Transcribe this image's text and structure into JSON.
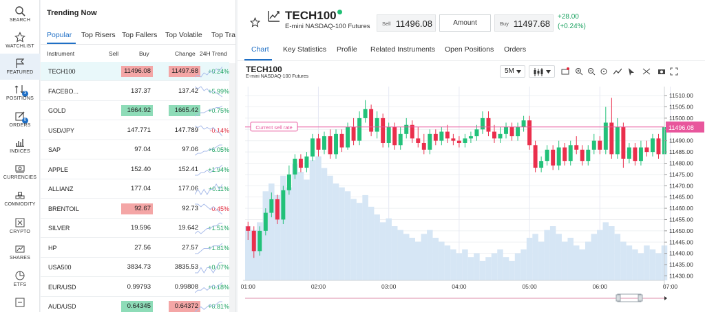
{
  "nav": [
    {
      "key": "search",
      "label": "SEARCH",
      "icon": "search-icon"
    },
    {
      "key": "watchlist",
      "label": "WATCHLIST",
      "icon": "star-icon"
    },
    {
      "key": "featured",
      "label": "FEATURED",
      "icon": "flag-icon",
      "active": true
    },
    {
      "key": "positions",
      "label": "POSITIONS",
      "icon": "positions-icon",
      "badge": "3"
    },
    {
      "key": "orders",
      "label": "ORDERS",
      "icon": "orders-icon",
      "badge": "0"
    },
    {
      "key": "indices",
      "label": "INDICES",
      "icon": "indices-icon"
    },
    {
      "key": "currencies",
      "label": "CURRENCIES",
      "icon": "currencies-icon"
    },
    {
      "key": "commodity",
      "label": "COMMODITY",
      "icon": "commodity-icon"
    },
    {
      "key": "crypto",
      "label": "CRYPTO",
      "icon": "crypto-icon"
    },
    {
      "key": "shares",
      "label": "SHARES",
      "icon": "shares-icon"
    },
    {
      "key": "etfs",
      "label": "ETFS",
      "icon": "etfs-icon"
    },
    {
      "key": "more",
      "label": "",
      "icon": "more-icon"
    }
  ],
  "trending": {
    "title": "Trending Now",
    "tabs": [
      "Popular",
      "Top Risers",
      "Top Fallers",
      "Top Volatile",
      "Top Trad"
    ],
    "headers": {
      "instrument": "Instrument",
      "sell": "Sell",
      "buy": "Buy",
      "change": "Change",
      "trend": "24H Trend"
    },
    "rows": [
      {
        "name": "TECH100",
        "sell": "11496.08",
        "buy": "11497.68",
        "change": "+0.24%",
        "sell_hl": "red",
        "buy_hl": "red",
        "dir": "pos",
        "active": true,
        "spark": [
          3,
          4,
          3,
          5,
          4,
          6,
          5,
          7,
          6,
          8
        ]
      },
      {
        "name": "FACEBO...",
        "sell": "137.37",
        "buy": "137.42",
        "change": "+5.99%",
        "sell_hl": "",
        "buy_hl": "",
        "dir": "pos",
        "spark": [
          6,
          5,
          6,
          4,
          5,
          3,
          4,
          3,
          2,
          1
        ]
      },
      {
        "name": "GOLD",
        "sell": "1664.92",
        "buy": "1665.42",
        "change": "+0.75%",
        "sell_hl": "green",
        "buy_hl": "green",
        "dir": "pos",
        "spark": [
          2,
          3,
          4,
          4,
          5,
          6,
          6,
          7,
          7,
          8
        ]
      },
      {
        "name": "USD/JPY",
        "sell": "147.771",
        "buy": "147.789",
        "change": "-0.14%",
        "sell_hl": "",
        "buy_hl": "",
        "dir": "neg",
        "spark": [
          7,
          6,
          7,
          5,
          6,
          5,
          6,
          4,
          3,
          1
        ]
      },
      {
        "name": "SAP",
        "sell": "97.04",
        "buy": "97.06",
        "change": "+6.05%",
        "sell_hl": "",
        "buy_hl": "",
        "dir": "pos",
        "spark": [
          2,
          3,
          3,
          4,
          4,
          5,
          5,
          6,
          7,
          7
        ]
      },
      {
        "name": "APPLE",
        "sell": "152.40",
        "buy": "152.41",
        "change": "+1.94%",
        "sell_hl": "",
        "buy_hl": "",
        "dir": "pos",
        "spark": [
          3,
          3,
          4,
          4,
          5,
          4,
          5,
          6,
          6,
          7
        ]
      },
      {
        "name": "ALLIANZ",
        "sell": "177.04",
        "buy": "177.06",
        "change": "+0.11%",
        "sell_hl": "",
        "buy_hl": "",
        "dir": "pos",
        "spark": [
          4,
          5,
          4,
          5,
          4,
          5,
          5,
          6,
          5,
          6
        ]
      },
      {
        "name": "BRENTOIL",
        "sell": "92.67",
        "buy": "92.73",
        "change": "-0.45%",
        "sell_hl": "red",
        "buy_hl": "",
        "dir": "neg",
        "spark": [
          6,
          6,
          5,
          6,
          5,
          4,
          5,
          4,
          3,
          2
        ]
      },
      {
        "name": "SILVER",
        "sell": "19.596",
        "buy": "19.642",
        "change": "+1.51%",
        "sell_hl": "",
        "buy_hl": "",
        "dir": "pos",
        "spark": [
          3,
          4,
          3,
          4,
          5,
          5,
          6,
          6,
          7,
          7
        ]
      },
      {
        "name": "HP",
        "sell": "27.56",
        "buy": "27.57",
        "change": "+1.81%",
        "sell_hl": "",
        "buy_hl": "",
        "dir": "pos",
        "spark": [
          3,
          3,
          4,
          5,
          5,
          5,
          6,
          6,
          6,
          7
        ]
      },
      {
        "name": "USA500",
        "sell": "3834.73",
        "buy": "3835.53",
        "change": "+0.07%",
        "sell_hl": "",
        "buy_hl": "",
        "dir": "pos",
        "spark": [
          4,
          4,
          5,
          4,
          5,
          5,
          4,
          5,
          6,
          6
        ]
      },
      {
        "name": "EUR/USD",
        "sell": "0.99793",
        "buy": "0.99808",
        "change": "+0.18%",
        "sell_hl": "",
        "buy_hl": "",
        "dir": "pos",
        "spark": [
          3,
          4,
          4,
          5,
          4,
          5,
          6,
          5,
          6,
          7
        ]
      },
      {
        "name": "AUD/USD",
        "sell": "0.64345",
        "buy": "0.64372",
        "change": "+0.81%",
        "sell_hl": "green",
        "buy_hl": "red",
        "dir": "pos",
        "spark": [
          3,
          4,
          5,
          4,
          5,
          6,
          5,
          6,
          7,
          7
        ]
      }
    ]
  },
  "instrument": {
    "symbol": "TECH100",
    "name": "E-mini NASDAQ-100 Futures",
    "sell_label": "Sell",
    "sell": "11496.08",
    "amount": "Amount",
    "buy_label": "Buy",
    "buy": "11497.68",
    "change": "+28.00",
    "change_pct": "(+0.24%)",
    "status_color": "#1fbf74"
  },
  "tabs": [
    "Chart",
    "Key Statistics",
    "Profile",
    "Related Instruments",
    "Open Positions",
    "Orders"
  ],
  "chart_header": {
    "title": "TECH100",
    "subtitle": "E-mini NASDAQ-100 Futures",
    "timeframe": "5M"
  },
  "toolbar_icons": [
    "alert-icon",
    "zoom-in-icon",
    "zoom-out-icon",
    "reset-zoom-icon",
    "trendline-icon",
    "cursor-icon",
    "crosshair-icon",
    "camera-icon",
    "fullscreen-icon"
  ],
  "colors": {
    "up": "#22c179",
    "down": "#ea2f4c",
    "accent": "#1f6fc5",
    "sell_line": "#e8569c",
    "volume": "#d6e6f5"
  },
  "chart_data": {
    "type": "candlestick",
    "title": "TECH100",
    "ylim": [
      11428,
      11514
    ],
    "yticks": [
      11430,
      11435,
      11440,
      11445,
      11450,
      11455,
      11460,
      11465,
      11470,
      11475,
      11480,
      11485,
      11490,
      11495,
      11500,
      11505,
      11510
    ],
    "ytick_labels": [
      "11430.00",
      "11435.00",
      "11440.00",
      "11445.00",
      "11450.00",
      "11455.00",
      "11460.00",
      "11465.00",
      "11470.00",
      "11475.00",
      "11480.00",
      "11485.00",
      "11490.00",
      "11495.00",
      "11500.00",
      "11505.00",
      "11510.00"
    ],
    "xticks": [
      "01:00",
      "02:00",
      "03:00",
      "04:00",
      "05:00",
      "06:00",
      "07:00"
    ],
    "xtick_index": [
      0,
      12,
      24,
      36,
      48,
      60,
      72
    ],
    "current_sell_label": "Current sell rate",
    "current_sell": 11496.08,
    "current_sell_text": "11496.08",
    "candles": [
      [
        11452,
        11450,
        11454,
        11446
      ],
      [
        11450,
        11441,
        11452,
        11438
      ],
      [
        11441,
        11450,
        11452,
        11439
      ],
      [
        11450,
        11458,
        11460,
        11448
      ],
      [
        11458,
        11464,
        11467,
        11456
      ],
      [
        11464,
        11455,
        11466,
        11453
      ],
      [
        11455,
        11468,
        11470,
        11453
      ],
      [
        11468,
        11475,
        11479,
        11466
      ],
      [
        11475,
        11482,
        11484,
        11473
      ],
      [
        11482,
        11478,
        11484,
        11476
      ],
      [
        11478,
        11483,
        11485,
        11476
      ],
      [
        11483,
        11491,
        11493,
        11481
      ],
      [
        11491,
        11486,
        11493,
        11483
      ],
      [
        11486,
        11492,
        11494,
        11484
      ],
      [
        11492,
        11484,
        11495,
        11482
      ],
      [
        11484,
        11493,
        11495,
        11482
      ],
      [
        11493,
        11487,
        11495,
        11485
      ],
      [
        11487,
        11496,
        11498,
        11486
      ],
      [
        11496,
        11490,
        11500,
        11488
      ],
      [
        11490,
        11500,
        11503,
        11488
      ],
      [
        11500,
        11504,
        11508,
        11498
      ],
      [
        11504,
        11494,
        11506,
        11492
      ],
      [
        11494,
        11500,
        11503,
        11491
      ],
      [
        11500,
        11489,
        11502,
        11487
      ],
      [
        11489,
        11496,
        11498,
        11487
      ],
      [
        11496,
        11488,
        11498,
        11486
      ],
      [
        11488,
        11493,
        11496,
        11486
      ],
      [
        11493,
        11497,
        11500,
        11491
      ],
      [
        11497,
        11491,
        11499,
        11489
      ],
      [
        11491,
        11489,
        11496,
        11487
      ],
      [
        11489,
        11486,
        11493,
        11484
      ],
      [
        11486,
        11493,
        11495,
        11484
      ],
      [
        11493,
        11490,
        11495,
        11488
      ],
      [
        11490,
        11494,
        11496,
        11488
      ],
      [
        11494,
        11491,
        11497,
        11489
      ],
      [
        11491,
        11490,
        11493,
        11488
      ],
      [
        11490,
        11489,
        11492,
        11487
      ],
      [
        11489,
        11491,
        11493,
        11487
      ],
      [
        11491,
        11492,
        11494,
        11489
      ],
      [
        11492,
        11495,
        11497,
        11490
      ],
      [
        11495,
        11500,
        11503,
        11493
      ],
      [
        11500,
        11494,
        11503,
        11492
      ],
      [
        11494,
        11491,
        11497,
        11489
      ],
      [
        11491,
        11493,
        11496,
        11489
      ],
      [
        11493,
        11496,
        11498,
        11491
      ],
      [
        11496,
        11492,
        11498,
        11490
      ],
      [
        11492,
        11496,
        11498,
        11490
      ],
      [
        11496,
        11499,
        11501,
        11494
      ],
      [
        11499,
        11488,
        11501,
        11486
      ],
      [
        11488,
        11478,
        11490,
        11476
      ],
      [
        11478,
        11481,
        11483,
        11476
      ],
      [
        11481,
        11486,
        11488,
        11479
      ],
      [
        11486,
        11479,
        11488,
        11477
      ],
      [
        11479,
        11487,
        11490,
        11477
      ],
      [
        11487,
        11481,
        11489,
        11479
      ],
      [
        11481,
        11488,
        11490,
        11479
      ],
      [
        11488,
        11486,
        11492,
        11484
      ],
      [
        11486,
        11481,
        11488,
        11479
      ],
      [
        11481,
        11486,
        11488,
        11479
      ],
      [
        11486,
        11490,
        11493,
        11484
      ],
      [
        11490,
        11486,
        11492,
        11484
      ],
      [
        11486,
        11498,
        11505,
        11484
      ],
      [
        11498,
        11484,
        11509,
        11482
      ],
      [
        11484,
        11496,
        11500,
        11482
      ],
      [
        11496,
        11482,
        11498,
        11478
      ],
      [
        11482,
        11487,
        11489,
        11480
      ],
      [
        11487,
        11481,
        11489,
        11479
      ],
      [
        11481,
        11487,
        11490,
        11479
      ],
      [
        11487,
        11485,
        11490,
        11483
      ],
      [
        11485,
        11491,
        11493,
        11483
      ],
      [
        11491,
        11484,
        11493,
        11482
      ],
      [
        11484,
        11496,
        11499,
        11482
      ]
    ],
    "volume": [
      28,
      26,
      30,
      46,
      50,
      44,
      54,
      48,
      60,
      56,
      52,
      62,
      64,
      58,
      54,
      50,
      48,
      46,
      42,
      40,
      44,
      38,
      34,
      30,
      32,
      28,
      26,
      24,
      22,
      20,
      24,
      26,
      22,
      20,
      18,
      16,
      14,
      16,
      12,
      14,
      10,
      12,
      14,
      16,
      12,
      10,
      14,
      16,
      22,
      24,
      20,
      26,
      28,
      24,
      20,
      22,
      18,
      16,
      20,
      24,
      26,
      30,
      28,
      24,
      20,
      18,
      16,
      14,
      18,
      16,
      14,
      18
    ]
  }
}
